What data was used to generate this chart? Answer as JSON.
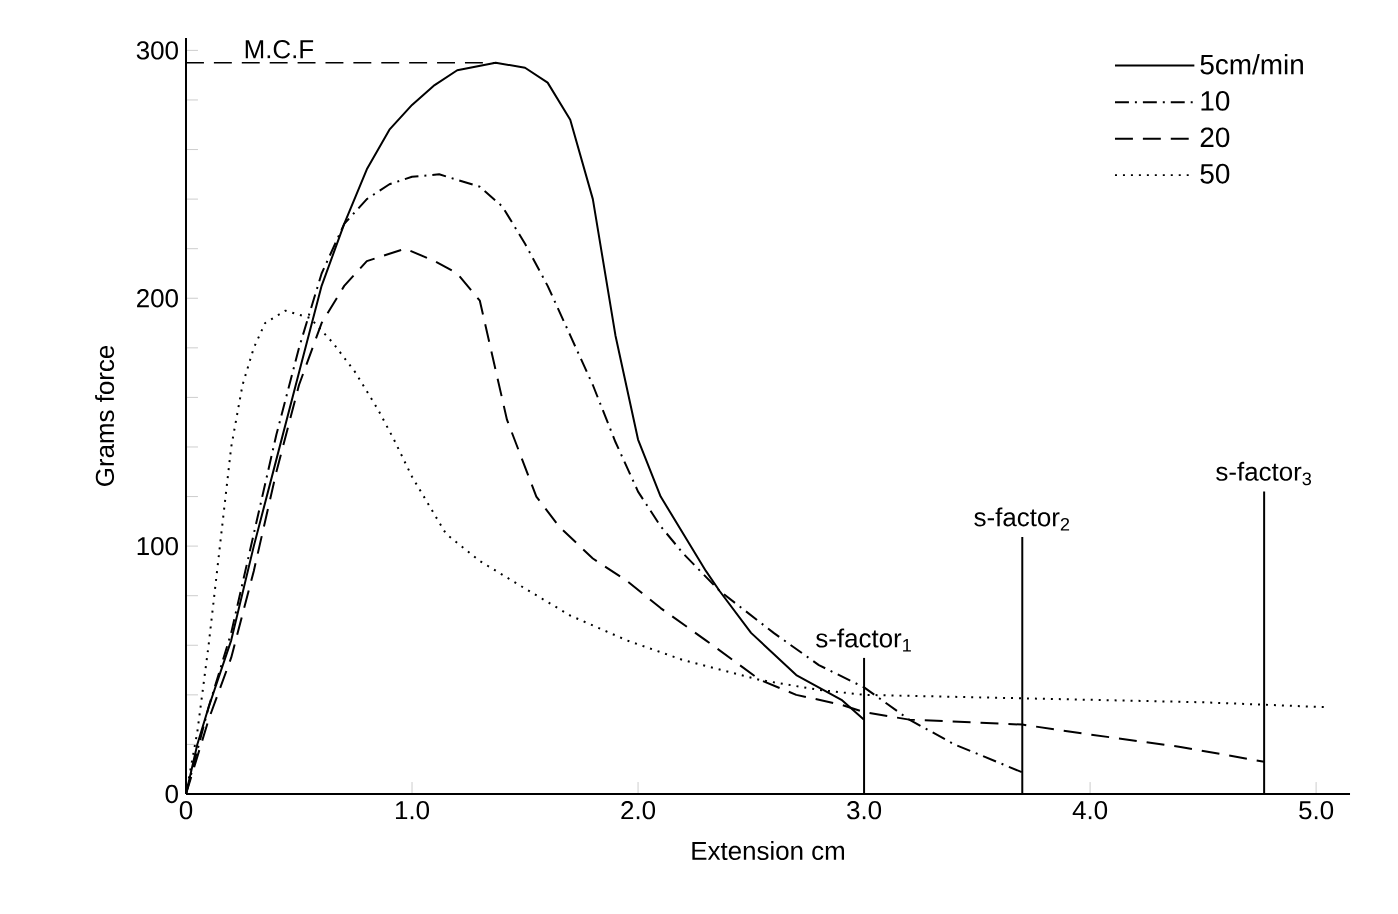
{
  "chart_data": {
    "type": "line",
    "xlabel": "Extension cm",
    "ylabel": "Grams force",
    "xlim": [
      0,
      5.15
    ],
    "ylim": [
      0,
      305
    ],
    "xticks": [
      0,
      {
        "value": 1,
        "label": "1.0"
      },
      {
        "value": 2,
        "label": "2.0"
      },
      {
        "value": 3,
        "label": "3.0"
      },
      {
        "value": 4,
        "label": "4.0"
      },
      {
        "value": 5,
        "label": "5.0"
      }
    ],
    "yticks": [
      0,
      {
        "value": 20,
        "label": null
      },
      {
        "value": 40,
        "label": null
      },
      {
        "value": 60,
        "label": null
      },
      {
        "value": 80,
        "label": null
      },
      100,
      {
        "value": 120,
        "label": null
      },
      {
        "value": 140,
        "label": null
      },
      {
        "value": 160,
        "label": null
      },
      {
        "value": 180,
        "label": null
      },
      200,
      {
        "value": 220,
        "label": null
      },
      {
        "value": 240,
        "label": null
      },
      {
        "value": 260,
        "label": null
      },
      {
        "value": 280,
        "label": null
      },
      300
    ],
    "legend": "top right",
    "grid": false,
    "series": [
      {
        "name": "5cm/min",
        "color": "#000000",
        "line_style": "solid",
        "x": [
          0,
          0.05,
          0.1,
          0.2,
          0.3,
          0.4,
          0.5,
          0.6,
          0.7,
          0.8,
          0.9,
          1.0,
          1.1,
          1.2,
          1.37,
          1.5,
          1.6,
          1.7,
          1.8,
          1.9,
          2.0,
          2.1,
          2.2,
          2.3,
          2.36,
          2.5,
          2.7,
          2.9,
          3.0
        ],
        "values": [
          0,
          20,
          35,
          62,
          100,
          135,
          170,
          205,
          230,
          252,
          268,
          278,
          286,
          292,
          295,
          293,
          287,
          272,
          240,
          185,
          143,
          120,
          105,
          90,
          82,
          65,
          48,
          38,
          30
        ]
      },
      {
        "name": "10",
        "color": "#000000",
        "line_style": "dashdot",
        "x": [
          0,
          0.1,
          0.2,
          0.3,
          0.4,
          0.5,
          0.6,
          0.7,
          0.8,
          0.9,
          1.0,
          1.12,
          1.3,
          1.4,
          1.5,
          1.6,
          1.7,
          1.8,
          1.9,
          2.0,
          2.1,
          2.2,
          2.36,
          2.6,
          2.8,
          3.0,
          3.2,
          3.4,
          3.72
        ],
        "values": [
          0,
          35,
          65,
          105,
          145,
          180,
          210,
          230,
          240,
          246,
          249,
          250,
          245,
          237,
          222,
          205,
          185,
          165,
          142,
          122,
          108,
          97,
          82,
          65,
          52,
          43,
          30,
          20,
          8
        ]
      },
      {
        "name": "20",
        "color": "#000000",
        "line_style": "dashed",
        "x": [
          0,
          0.1,
          0.2,
          0.3,
          0.4,
          0.5,
          0.6,
          0.7,
          0.8,
          0.97,
          1.1,
          1.2,
          1.3,
          1.42,
          1.55,
          1.65,
          1.8,
          1.95,
          2.1,
          2.3,
          2.54,
          2.7,
          2.9,
          3.0,
          3.2,
          3.7,
          4.0,
          4.4,
          4.77
        ],
        "values": [
          0,
          30,
          55,
          90,
          130,
          165,
          190,
          205,
          215,
          220,
          215,
          210,
          199,
          151,
          120,
          108,
          95,
          86,
          75,
          62,
          46,
          40,
          36,
          33,
          30,
          28,
          24,
          19,
          13
        ]
      },
      {
        "name": "50",
        "color": "#000000",
        "line_style": "dotted",
        "x": [
          0,
          0.05,
          0.1,
          0.15,
          0.2,
          0.25,
          0.3,
          0.35,
          0.44,
          0.55,
          0.65,
          0.75,
          0.85,
          0.92,
          1.0,
          1.15,
          1.3,
          1.48,
          1.7,
          1.95,
          2.2,
          2.54,
          2.8,
          3.0,
          3.5,
          4.0,
          4.5,
          5.05
        ],
        "values": [
          0,
          25,
          60,
          100,
          140,
          165,
          180,
          190,
          195,
          192,
          182,
          170,
          155,
          143,
          128,
          105,
          94,
          84,
          72,
          62,
          54,
          46,
          42,
          40,
          39,
          38,
          37,
          35
        ]
      }
    ],
    "ref_lines": [
      {
        "axis": "y",
        "value": 295,
        "label": "M.C.F",
        "line_style": "dashed"
      },
      {
        "axis": "x",
        "value": 3.0,
        "label": "s-factor$_{1}$"
      },
      {
        "axis": "x",
        "value": 3.7,
        "label": "s-factor$_{2}$"
      },
      {
        "axis": "x",
        "value": 4.77,
        "label": "s-factor$_{3}$"
      }
    ]
  }
}
